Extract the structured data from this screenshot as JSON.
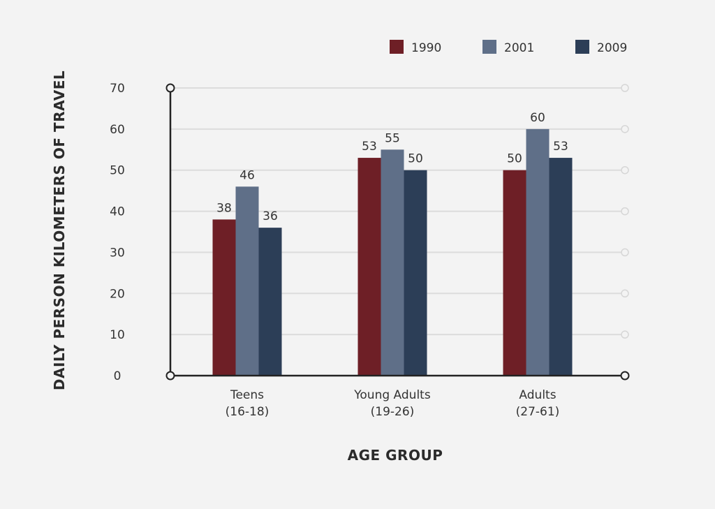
{
  "chart_data": {
    "type": "bar",
    "xlabel": "AGE GROUP",
    "ylabel": "DAILY PERSON KILOMETERS OF TRAVEL",
    "ylim": [
      0,
      70
    ],
    "yticks": [
      0,
      10,
      20,
      30,
      40,
      50,
      60,
      70
    ],
    "grid": true,
    "legend_position": "top-right",
    "categories": [
      [
        "Teens",
        "(16-18)"
      ],
      [
        "Young Adults",
        "(19-26)"
      ],
      [
        "Adults",
        "(27-61)"
      ]
    ],
    "series": [
      {
        "name": "1990",
        "color": "#6e1f26",
        "values": [
          38,
          53,
          50
        ]
      },
      {
        "name": "2001",
        "color": "#5f6f88",
        "values": [
          46,
          55,
          60
        ]
      },
      {
        "name": "2009",
        "color": "#2c3e57",
        "values": [
          36,
          50,
          53
        ]
      }
    ]
  }
}
